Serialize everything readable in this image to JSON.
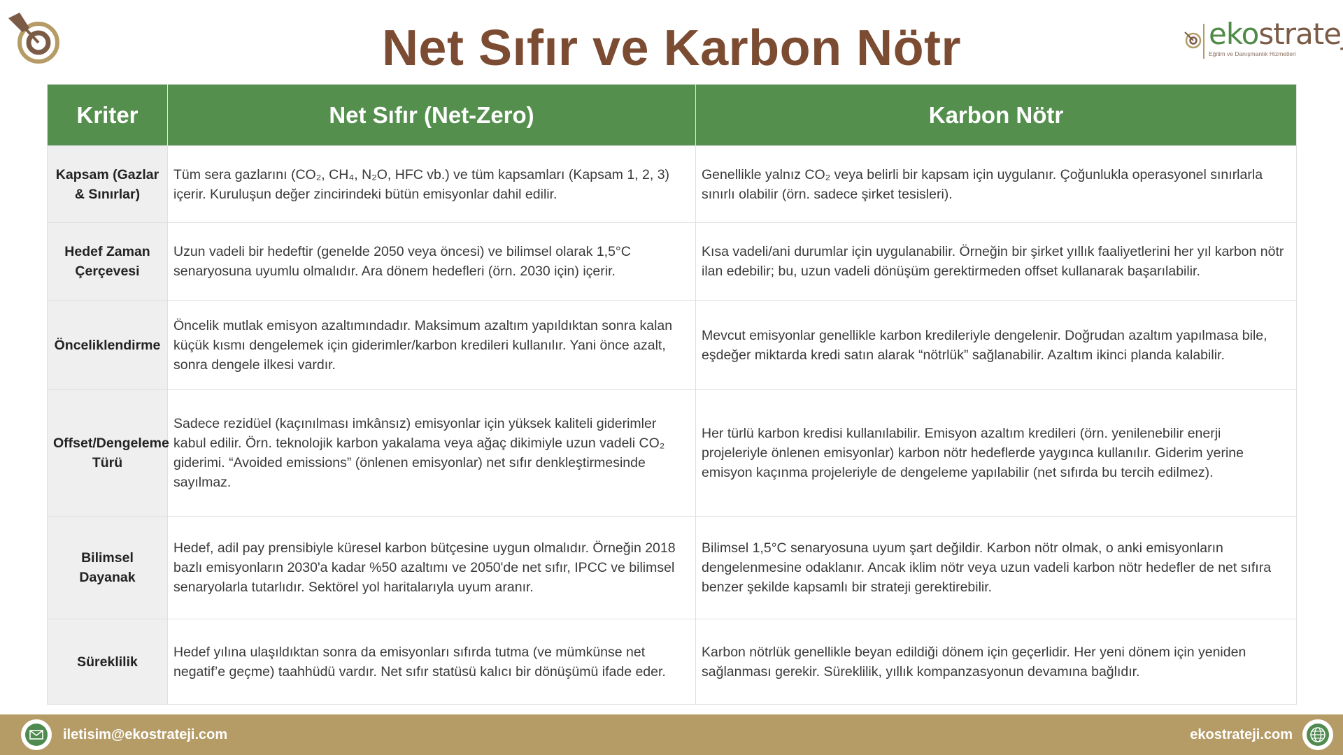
{
  "title": "Net Sıfır ve Karbon Nötr",
  "brand": {
    "name_green": "eko",
    "name_brown": "strateji",
    "tagline": "Eğitim ve Danışmanlık Hizmetleri"
  },
  "colors": {
    "header": "#548f4e",
    "title": "#7b4b32",
    "footer": "#b59c66",
    "criteria_bg": "#efefef"
  },
  "table": {
    "headers": [
      "Kriter",
      "Net Sıfır (Net-Zero)",
      "Karbon Nötr"
    ],
    "rows": [
      {
        "criterion": "Kapsam (Gazlar & Sınırlar)",
        "net_zero": "Tüm sera gazlarını (CO₂, CH₄, N₂O, HFC vb.) ve tüm kapsamları (Kapsam 1, 2, 3) içerir. Kuruluşun değer zincirindeki bütün emisyonlar dahil edilir.",
        "carbon_neutral": "Genellikle yalnız CO₂ veya belirli bir kapsam için uygulanır. Çoğunlukla operasyonel sınırlarla sınırlı olabilir (örn. sadece şirket tesisleri)."
      },
      {
        "criterion": "Hedef Zaman Çerçevesi",
        "net_zero": "Uzun vadeli bir hedeftir (genelde 2050 veya öncesi) ve bilimsel olarak 1,5°C senaryosuna uyumlu olmalıdır. Ara dönem hedefleri (örn. 2030 için) içerir.",
        "carbon_neutral": "Kısa vadeli/ani durumlar için uygulanabilir. Örneğin bir şirket yıllık faaliyetlerini her yıl karbon nötr ilan edebilir; bu, uzun vadeli dönüşüm gerektirmeden offset kullanarak başarılabilir."
      },
      {
        "criterion": "Önceliklendirme",
        "net_zero": "Öncelik mutlak emisyon azaltımındadır. Maksimum azaltım yapıldıktan sonra kalan küçük kısmı dengelemek için giderimler/karbon kredileri kullanılır. Yani önce azalt, sonra dengele ilkesi vardır.",
        "carbon_neutral": "Mevcut emisyonlar genellikle karbon kredileriyle dengelenir. Doğrudan azaltım yapılmasa bile, eşdeğer miktarda kredi satın alarak “nötrlük” sağlanabilir. Azaltım ikinci planda kalabilir."
      },
      {
        "criterion": "Offset/Dengeleme Türü",
        "net_zero": "Sadece rezidüel (kaçınılması imkânsız) emisyonlar için yüksek kaliteli giderimler kabul edilir. Örn. teknolojik karbon yakalama veya ağaç dikimiyle uzun vadeli CO₂ giderimi. “Avoided emissions” (önlenen emisyonlar) net sıfır denkleştirmesinde sayılmaz.",
        "carbon_neutral": "Her türlü karbon kredisi kullanılabilir. Emisyon azaltım kredileri (örn. yenilenebilir enerji projeleriyle önlenen emisyonlar) karbon nötr hedeflerde yaygınca kullanılır. Giderim yerine emisyon kaçınma projeleriyle de dengeleme yapılabilir (net sıfırda bu tercih edilmez)."
      },
      {
        "criterion": "Bilimsel Dayanak",
        "net_zero": "Hedef, adil pay prensibiyle küresel karbon bütçesine uygun olmalıdır. Örneğin 2018 bazlı emisyonların 2030'a kadar %50 azaltımı ve 2050'de net sıfır, IPCC ve bilimsel senaryolarla tutarlıdır. Sektörel yol haritalarıyla uyum aranır.",
        "carbon_neutral": "Bilimsel 1,5°C senaryosuna uyum şart değildir. Karbon nötr olmak, o anki emisyonların dengelenmesine odaklanır. Ancak iklim nötr veya uzun vadeli karbon nötr hedefler de net sıfıra benzer şekilde kapsamlı bir strateji gerektirebilir."
      },
      {
        "criterion": "Süreklilik",
        "net_zero": "Hedef yılına ulaşıldıktan sonra da emisyonları sıfırda tutma (ve mümkünse net negatif’e geçme) taahhüdü vardır. Net sıfır statüsü kalıcı bir dönüşümü ifade eder.",
        "carbon_neutral": "Karbon nötrlük genellikle beyan edildiği dönem için geçerlidir. Her yeni dönem için yeniden sağlanması gerekir. Süreklilik, yıllık kompanzasyonun devamına bağlıdır."
      }
    ]
  },
  "footer": {
    "email": "iletisim@ekostrateji.com",
    "website": "ekostrateji.com",
    "email_icon": "envelope-icon",
    "web_icon": "globe-icon"
  }
}
